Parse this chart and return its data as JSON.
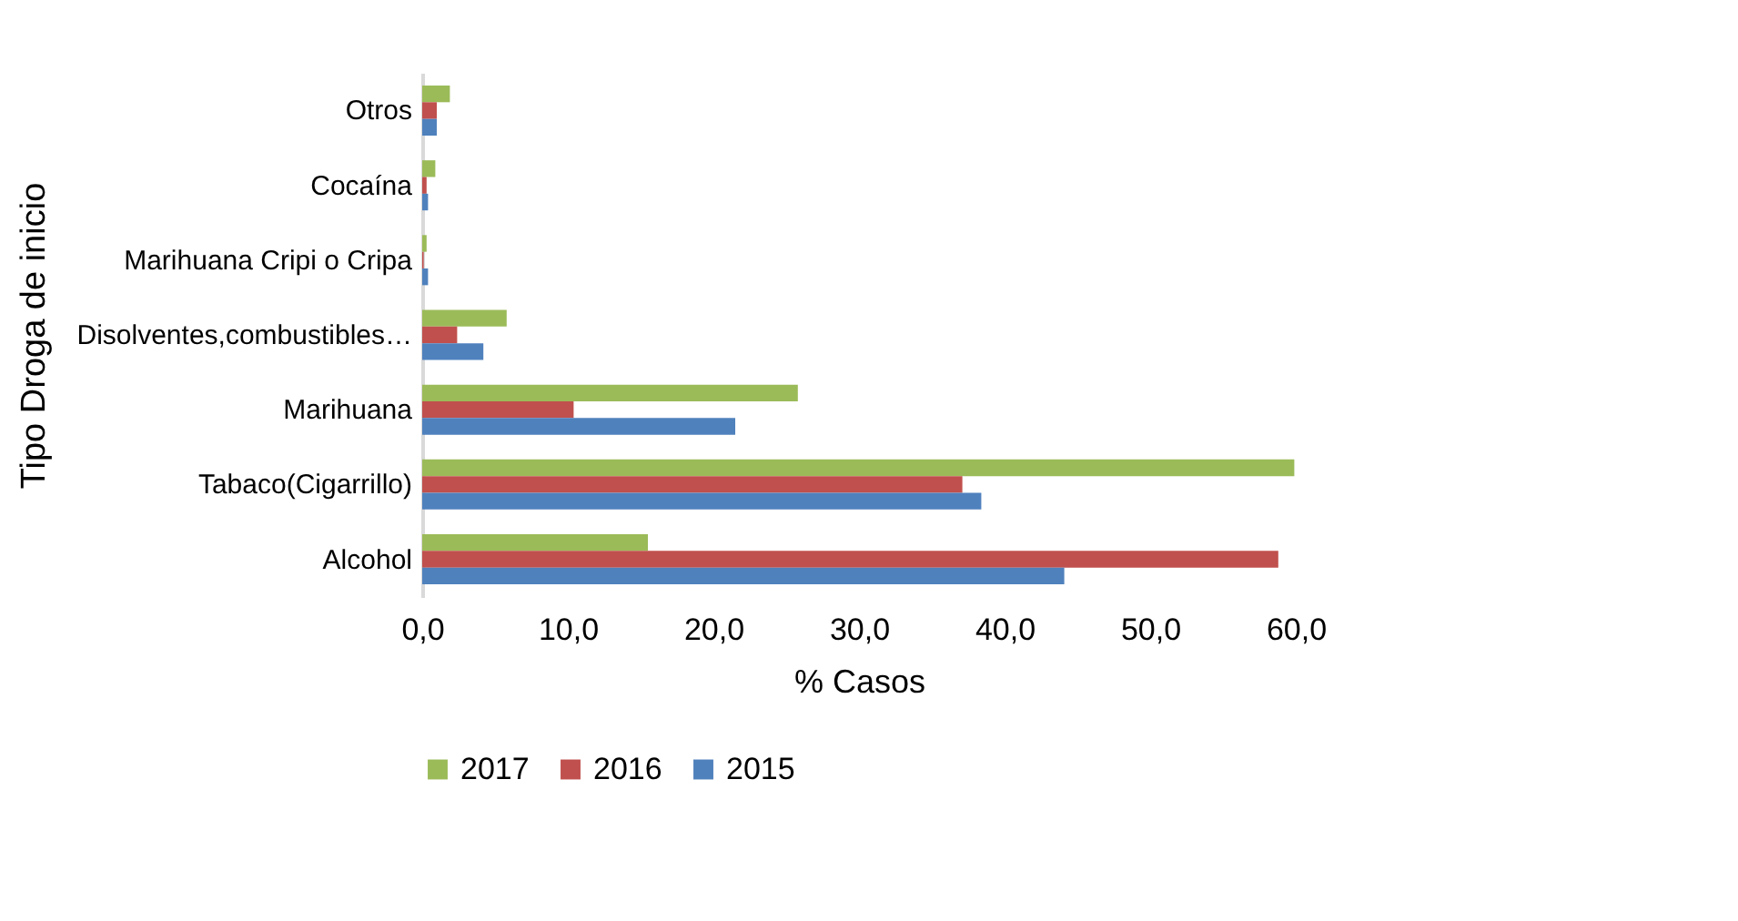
{
  "chart_data": {
    "type": "bar",
    "orientation": "horizontal",
    "ylabel": "Tipo Droga de inicio",
    "xlabel": "% Casos",
    "categories": [
      "Otros",
      "Cocaína",
      "Marihuana Cripi o Cripa",
      "Disolventes,combustibles…",
      "Marihuana",
      "Tabaco(Cigarrillo)",
      "Alcohol"
    ],
    "series": [
      {
        "name": "2017",
        "color": "#9bbb59",
        "values": [
          1.9,
          0.9,
          0.3,
          5.8,
          25.8,
          59.9,
          15.5
        ]
      },
      {
        "name": "2016",
        "color": "#c0504d",
        "values": [
          1.0,
          0.3,
          0.1,
          2.4,
          10.4,
          37.1,
          58.8
        ]
      },
      {
        "name": "2015",
        "color": "#4f81bd",
        "values": [
          1.0,
          0.4,
          0.4,
          4.2,
          21.5,
          38.4,
          44.1
        ]
      }
    ],
    "xlim": [
      0,
      60
    ],
    "xticks": [
      {
        "value": 0,
        "label": "0,0"
      },
      {
        "value": 10,
        "label": "10,0"
      },
      {
        "value": 20,
        "label": "20,0"
      },
      {
        "value": 30,
        "label": "30,0"
      },
      {
        "value": 40,
        "label": "40,0"
      },
      {
        "value": 50,
        "label": "50,0"
      },
      {
        "value": 60,
        "label": "60,0"
      }
    ],
    "grid": false,
    "legend": "bottom"
  }
}
